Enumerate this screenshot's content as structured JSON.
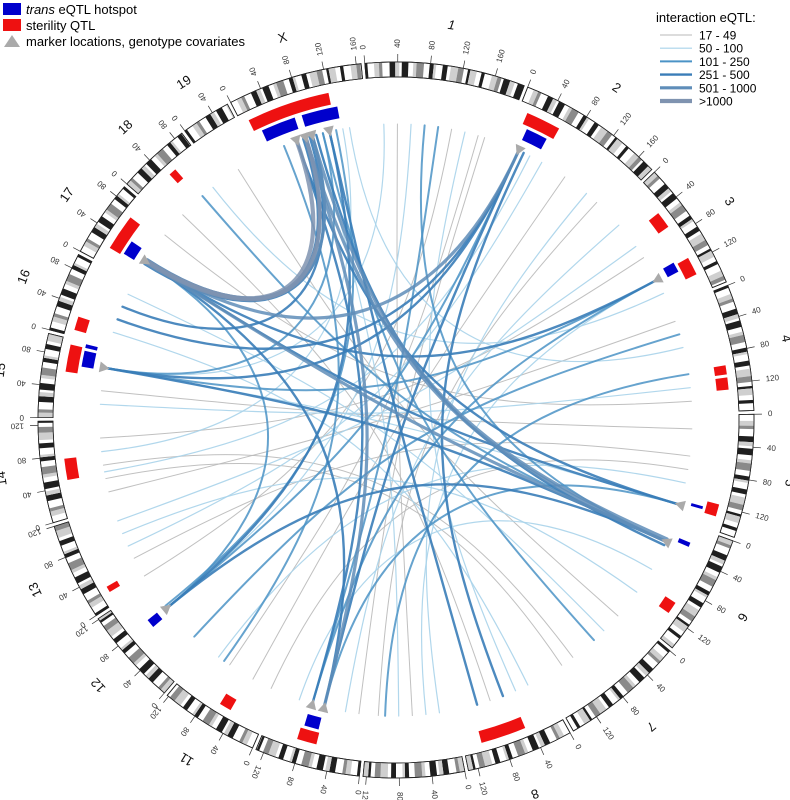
{
  "legend_left": [
    {
      "italic_prefix": "trans",
      "text": " eQTL hotspot",
      "swatch": "rect",
      "color": "#0000cc"
    },
    {
      "italic_prefix": "",
      "text": "sterility QTL",
      "swatch": "rect",
      "color": "#ee1111"
    },
    {
      "italic_prefix": "",
      "text": "marker locations, genotype covariates",
      "swatch": "triangle",
      "color": "#aaaaaa"
    }
  ],
  "legend_right": {
    "title": "interaction eQTL:",
    "bins": [
      {
        "label": "17 - 49",
        "color": "#b9b9b9"
      },
      {
        "label": "50 - 100",
        "color": "#a9d3ea"
      },
      {
        "label": "101 - 250",
        "color": "#4b93c6"
      },
      {
        "label": "251 - 500",
        "color": "#3a7db8"
      },
      {
        "label": "501 - 1000",
        "color": "#5f8db9"
      },
      {
        "label": ">1000",
        "color": "#7f93b0"
      }
    ]
  },
  "colors": {
    "hotspot": "#0000cc",
    "sterility": "#ee1111",
    "marker": "#aaaaaa",
    "band_dark": "#1f1f1f",
    "band_mid": "#8a8a8a",
    "band_light": "#cfcfcf"
  },
  "chromosomes": [
    {
      "name": "1",
      "length": 197,
      "ticks": [
        "0",
        "40",
        "80",
        "120",
        "160"
      ]
    },
    {
      "name": "2",
      "length": 182,
      "ticks": [
        "0",
        "40",
        "80",
        "120",
        "160"
      ]
    },
    {
      "name": "3",
      "length": 160,
      "ticks": [
        "0",
        "40",
        "80",
        "120"
      ]
    },
    {
      "name": "4",
      "length": 156,
      "ticks": [
        "0",
        "40",
        "80",
        "120"
      ]
    },
    {
      "name": "5",
      "length": 152,
      "ticks": [
        "0",
        "40",
        "80",
        "120"
      ]
    },
    {
      "name": "6",
      "length": 150,
      "ticks": [
        "0",
        "40",
        "80",
        "120"
      ]
    },
    {
      "name": "7",
      "length": 153,
      "ticks": [
        "0",
        "40",
        "80",
        "120"
      ]
    },
    {
      "name": "8",
      "length": 132,
      "ticks": [
        "0",
        "40",
        "80",
        "120"
      ]
    },
    {
      "name": "9",
      "length": 124,
      "ticks": [
        "0",
        "40",
        "80",
        "120"
      ]
    },
    {
      "name": "10",
      "length": 130,
      "ticks": [
        "0",
        "40",
        "80",
        "120"
      ]
    },
    {
      "name": "11",
      "length": 122,
      "ticks": [
        "0",
        "40",
        "80",
        "120"
      ]
    },
    {
      "name": "12",
      "length": 121,
      "ticks": [
        "0",
        "40",
        "80",
        "120"
      ]
    },
    {
      "name": "13",
      "length": 120,
      "ticks": [
        "0",
        "40",
        "80",
        "120"
      ]
    },
    {
      "name": "14",
      "length": 125,
      "ticks": [
        "0",
        "40",
        "80",
        "120"
      ]
    },
    {
      "name": "15",
      "length": 103,
      "ticks": [
        "0",
        "40",
        "80"
      ]
    },
    {
      "name": "16",
      "length": 98,
      "ticks": [
        "0",
        "40",
        "80"
      ]
    },
    {
      "name": "17",
      "length": 95,
      "ticks": [
        "0",
        "40",
        "80"
      ]
    },
    {
      "name": "18",
      "length": 91,
      "ticks": [
        "0",
        "40",
        "80"
      ]
    },
    {
      "name": "19",
      "length": 61,
      "ticks": [
        "0",
        "40"
      ]
    },
    {
      "name": "X",
      "length": 166,
      "ticks": [
        "0",
        "40",
        "80",
        "120",
        "160"
      ]
    }
  ],
  "hotspots": [
    {
      "chr": "2",
      "start": 20,
      "end": 50
    },
    {
      "chr": "3",
      "start": 108,
      "end": 122
    },
    {
      "chr": "5",
      "start": 126,
      "end": 130
    },
    {
      "chr": "6",
      "start": 22,
      "end": 28
    },
    {
      "chr": "10",
      "start": 62,
      "end": 82
    },
    {
      "chr": "12",
      "start": 70,
      "end": 82
    },
    {
      "chr": "15",
      "start": 70,
      "end": 92
    },
    {
      "chr": "15",
      "start": 96,
      "end": 101
    },
    {
      "chr": "17",
      "start": 25,
      "end": 45
    },
    {
      "chr": "X",
      "start": 20,
      "end": 68
    },
    {
      "chr": "X",
      "start": 78,
      "end": 128
    }
  ],
  "sterility": [
    {
      "chr": "2",
      "start": 12,
      "end": 58
    },
    {
      "chr": "3",
      "start": 42,
      "end": 64
    },
    {
      "chr": "3",
      "start": 112,
      "end": 136
    },
    {
      "chr": "4",
      "start": 96,
      "end": 108
    },
    {
      "chr": "4",
      "start": 112,
      "end": 128
    },
    {
      "chr": "5",
      "start": 118,
      "end": 134
    },
    {
      "chr": "6",
      "start": 102,
      "end": 118
    },
    {
      "chr": "8",
      "start": 48,
      "end": 108
    },
    {
      "chr": "10",
      "start": 60,
      "end": 86
    },
    {
      "chr": "11",
      "start": 46,
      "end": 62
    },
    {
      "chr": "13",
      "start": 16,
      "end": 24
    },
    {
      "chr": "14",
      "start": 48,
      "end": 76
    },
    {
      "chr": "15",
      "start": 60,
      "end": 96
    },
    {
      "chr": "16",
      "start": 8,
      "end": 26
    },
    {
      "chr": "17",
      "start": 22,
      "end": 70
    },
    {
      "chr": "18",
      "start": 46,
      "end": 56
    },
    {
      "chr": "X",
      "start": 10,
      "end": 120
    }
  ],
  "markers": [
    {
      "chr": "2",
      "pos": 22
    },
    {
      "chr": "3",
      "pos": 118
    },
    {
      "chr": "5",
      "pos": 133
    },
    {
      "chr": "6",
      "pos": 34
    },
    {
      "chr": "10",
      "pos": 62
    },
    {
      "chr": "10",
      "pos": 80
    },
    {
      "chr": "12",
      "pos": 78
    },
    {
      "chr": "15",
      "pos": 74
    },
    {
      "chr": "17",
      "pos": 32
    },
    {
      "chr": "X",
      "pos": 60
    },
    {
      "chr": "X",
      "pos": 74
    },
    {
      "chr": "X",
      "pos": 84
    },
    {
      "chr": "X",
      "pos": 110
    }
  ],
  "links": [
    {
      "a": [
        "X",
        74
      ],
      "b": [
        "17",
        32
      ],
      "bin": 5
    },
    {
      "a": [
        "X",
        74
      ],
      "b": [
        "17",
        30
      ],
      "bin": 4
    },
    {
      "a": [
        "X",
        70
      ],
      "b": [
        "17",
        36
      ],
      "bin": 3
    },
    {
      "a": [
        "X",
        60
      ],
      "b": [
        "17",
        34
      ],
      "bin": 5
    },
    {
      "a": [
        "X",
        84
      ],
      "b": [
        "17",
        28
      ],
      "bin": 3
    },
    {
      "a": [
        "X",
        84
      ],
      "b": [
        "17",
        34
      ],
      "bin": 4
    },
    {
      "a": [
        "X",
        80
      ],
      "b": [
        "16",
        60
      ],
      "bin": 3
    },
    {
      "a": [
        "X",
        74
      ],
      "b": [
        "6",
        34
      ],
      "bin": 4
    },
    {
      "a": [
        "X",
        84
      ],
      "b": [
        "6",
        30
      ],
      "bin": 4
    },
    {
      "a": [
        "X",
        60
      ],
      "b": [
        "5",
        133
      ],
      "bin": 3
    },
    {
      "a": [
        "X",
        90
      ],
      "b": [
        "6",
        40
      ],
      "bin": 3
    },
    {
      "a": [
        "X",
        110
      ],
      "b": [
        "8",
        100
      ],
      "bin": 3
    },
    {
      "a": [
        "X",
        100
      ],
      "b": [
        "7",
        60
      ],
      "bin": 2
    },
    {
      "a": [
        "X",
        74
      ],
      "b": [
        "10",
        62
      ],
      "bin": 4
    },
    {
      "a": [
        "X",
        60
      ],
      "b": [
        "10",
        80
      ],
      "bin": 3
    },
    {
      "a": [
        "X",
        120
      ],
      "b": [
        "12",
        82
      ],
      "bin": 2
    },
    {
      "a": [
        "X",
        110
      ],
      "b": [
        "12",
        78
      ],
      "bin": 3
    },
    {
      "a": [
        "X",
        40
      ],
      "b": [
        "11",
        90
      ],
      "bin": 2
    },
    {
      "a": [
        "X",
        90
      ],
      "b": [
        "9",
        80
      ],
      "bin": 1
    },
    {
      "a": [
        "X",
        100
      ],
      "b": [
        "15",
        74
      ],
      "bin": 2
    },
    {
      "a": [
        "X",
        130
      ],
      "b": [
        "14",
        80
      ],
      "bin": 1
    },
    {
      "a": [
        "X",
        140
      ],
      "b": [
        "4",
        60
      ],
      "bin": 1
    },
    {
      "a": [
        "2",
        22
      ],
      "b": [
        "17",
        32
      ],
      "bin": 4
    },
    {
      "a": [
        "2",
        22
      ],
      "b": [
        "15",
        74
      ],
      "bin": 3
    },
    {
      "a": [
        "2",
        22
      ],
      "b": [
        "10",
        62
      ],
      "bin": 3
    },
    {
      "a": [
        "2",
        22
      ],
      "b": [
        "12",
        78
      ],
      "bin": 2
    },
    {
      "a": [
        "2",
        30
      ],
      "b": [
        "8",
        60
      ],
      "bin": 3
    },
    {
      "a": [
        "2",
        22
      ],
      "b": [
        "16",
        40
      ],
      "bin": 3
    },
    {
      "a": [
        "2",
        40
      ],
      "b": [
        "14",
        50
      ],
      "bin": 1
    },
    {
      "a": [
        "2",
        60
      ],
      "b": [
        "13",
        60
      ],
      "bin": 1
    },
    {
      "a": [
        "2",
        100
      ],
      "b": [
        "11",
        40
      ],
      "bin": 0
    },
    {
      "a": [
        "3",
        118
      ],
      "b": [
        "15",
        74
      ],
      "bin": 2
    },
    {
      "a": [
        "3",
        118
      ],
      "b": [
        "17",
        32
      ],
      "bin": 3
    },
    {
      "a": [
        "3",
        118
      ],
      "b": [
        "10",
        80
      ],
      "bin": 2
    },
    {
      "a": [
        "3",
        118
      ],
      "b": [
        "9",
        40
      ],
      "bin": 1
    },
    {
      "a": [
        "3",
        60
      ],
      "b": [
        "13",
        100
      ],
      "bin": 1
    },
    {
      "a": [
        "3",
        80
      ],
      "b": [
        "14",
        100
      ],
      "bin": 0
    },
    {
      "a": [
        "4",
        40
      ],
      "b": [
        "12",
        20
      ],
      "bin": 2
    },
    {
      "a": [
        "4",
        100
      ],
      "b": [
        "9",
        100
      ],
      "bin": 2
    },
    {
      "a": [
        "4",
        120
      ],
      "b": [
        "15",
        20
      ],
      "bin": 1
    },
    {
      "a": [
        "4",
        20
      ],
      "b": [
        "14",
        20
      ],
      "bin": 0
    },
    {
      "a": [
        "5",
        133
      ],
      "b": [
        "17",
        32
      ],
      "bin": 3
    },
    {
      "a": [
        "5",
        133
      ],
      "b": [
        "10",
        62
      ],
      "bin": 2
    },
    {
      "a": [
        "5",
        133
      ],
      "b": [
        "15",
        74
      ],
      "bin": 1
    },
    {
      "a": [
        "5",
        60
      ],
      "b": [
        "13",
        40
      ],
      "bin": 0
    },
    {
      "a": [
        "5",
        100
      ],
      "b": [
        "11",
        100
      ],
      "bin": 1
    },
    {
      "a": [
        "6",
        34
      ],
      "b": [
        "17",
        32
      ],
      "bin": 4
    },
    {
      "a": [
        "6",
        34
      ],
      "b": [
        "15",
        74
      ],
      "bin": 3
    },
    {
      "a": [
        "6",
        34
      ],
      "b": [
        "12",
        78
      ],
      "bin": 3
    },
    {
      "a": [
        "6",
        34
      ],
      "b": [
        "18",
        60
      ],
      "bin": 2
    },
    {
      "a": [
        "6",
        34
      ],
      "b": [
        "1",
        80
      ],
      "bin": 2
    },
    {
      "a": [
        "6",
        80
      ],
      "b": [
        "10",
        100
      ],
      "bin": 1
    },
    {
      "a": [
        "7",
        40
      ],
      "b": [
        "16",
        80
      ],
      "bin": 1
    },
    {
      "a": [
        "7",
        100
      ],
      "b": [
        "14",
        60
      ],
      "bin": 0
    },
    {
      "a": [
        "8",
        40
      ],
      "b": [
        "1",
        140
      ],
      "bin": 1
    },
    {
      "a": [
        "8",
        80
      ],
      "b": [
        "18",
        20
      ],
      "bin": 0
    },
    {
      "a": [
        "9",
        60
      ],
      "b": [
        "1",
        40
      ],
      "bin": 0
    },
    {
      "a": [
        "9",
        20
      ],
      "b": [
        "2",
        140
      ],
      "bin": 1
    },
    {
      "a": [
        "10",
        62
      ],
      "b": [
        "17",
        32
      ],
      "bin": 3
    },
    {
      "a": [
        "10",
        80
      ],
      "b": [
        "1",
        100
      ],
      "bin": 2
    },
    {
      "a": [
        "10",
        30
      ],
      "b": [
        "3",
        20
      ],
      "bin": 1
    },
    {
      "a": [
        "11",
        80
      ],
      "b": [
        "1",
        160
      ],
      "bin": 0
    },
    {
      "a": [
        "12",
        78
      ],
      "b": [
        "17",
        32
      ],
      "bin": 2
    },
    {
      "a": [
        "12",
        78
      ],
      "b": [
        "1",
        60
      ],
      "bin": 1
    },
    {
      "a": [
        "13",
        80
      ],
      "b": [
        "6",
        120
      ],
      "bin": 1
    },
    {
      "a": [
        "14",
        40
      ],
      "b": [
        "7",
        120
      ],
      "bin": 0
    },
    {
      "a": [
        "15",
        74
      ],
      "b": [
        "1",
        20
      ],
      "bin": 1
    },
    {
      "a": [
        "15",
        40
      ],
      "b": [
        "5",
        20
      ],
      "bin": 0
    },
    {
      "a": [
        "16",
        20
      ],
      "b": [
        "8",
        20
      ],
      "bin": 1
    },
    {
      "a": [
        "17",
        80
      ],
      "b": [
        "4",
        140
      ],
      "bin": 0
    },
    {
      "a": [
        "18",
        80
      ],
      "b": [
        "3",
        140
      ],
      "bin": 1
    },
    {
      "a": [
        "19",
        30
      ],
      "b": [
        "7",
        10
      ],
      "bin": 0
    },
    {
      "a": [
        "1",
        120
      ],
      "b": [
        "13",
        10
      ],
      "bin": 0
    },
    {
      "a": [
        "1",
        170
      ],
      "b": [
        "10",
        10
      ],
      "bin": 0
    },
    {
      "a": [
        "2",
        160
      ],
      "b": [
        "9",
        110
      ],
      "bin": 0
    },
    {
      "a": [
        "11",
        10
      ],
      "b": [
        "5",
        80
      ],
      "bin": 0
    }
  ]
}
